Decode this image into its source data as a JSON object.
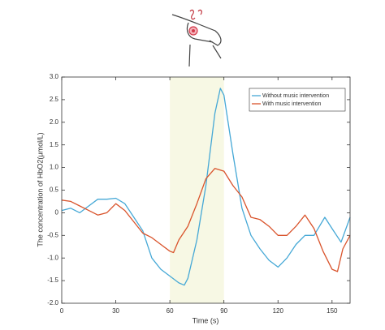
{
  "chart_data": {
    "type": "line",
    "xlabel": "Time (s)",
    "ylabel": "The concentration of  HbO2(μmol/L)",
    "xlim": [
      0,
      160
    ],
    "ylim": [
      -2,
      3
    ],
    "xticks": [
      0,
      30,
      60,
      90,
      120,
      150
    ],
    "yticks": [
      {
        "value": -2,
        "label": "-2.0"
      },
      {
        "value": -1.5,
        "label": "-1.5"
      },
      {
        "value": -1,
        "label": "-1.0"
      },
      {
        "value": -0.5,
        "label": "-0.5"
      },
      {
        "value": 0,
        "label": "0"
      },
      {
        "value": 0.5,
        "label": "0.5"
      },
      {
        "value": 1,
        "label": "1.0"
      },
      {
        "value": 1.5,
        "label": "1.5"
      },
      {
        "value": 2,
        "label": "2.0"
      },
      {
        "value": 2.5,
        "label": "2.5"
      },
      {
        "value": 3,
        "label": "3.0"
      }
    ],
    "highlight": [
      60,
      90
    ],
    "highlight_color": "#f7f8e4",
    "legend": "upper right",
    "series": [
      {
        "name": "Without music intervention",
        "color": "#45a8d6",
        "x": [
          0,
          5,
          10,
          15,
          20,
          25,
          30,
          35,
          40,
          45,
          50,
          55,
          60,
          65,
          68,
          70,
          75,
          80,
          85,
          88,
          90,
          95,
          100,
          105,
          110,
          115,
          120,
          125,
          130,
          135,
          140,
          143,
          146,
          150,
          155,
          160
        ],
        "values": [
          0.05,
          0.1,
          0.0,
          0.15,
          0.3,
          0.3,
          0.32,
          0.2,
          -0.1,
          -0.4,
          -1.0,
          -1.25,
          -1.4,
          -1.55,
          -1.6,
          -1.45,
          -0.6,
          0.6,
          2.2,
          2.75,
          2.6,
          1.3,
          0.1,
          -0.5,
          -0.8,
          -1.05,
          -1.2,
          -1.0,
          -0.7,
          -0.5,
          -0.5,
          -0.3,
          -0.1,
          -0.35,
          -0.65,
          -0.1
        ]
      },
      {
        "name": "With music intervention",
        "color": "#d9532b",
        "x": [
          0,
          5,
          10,
          15,
          20,
          25,
          30,
          35,
          40,
          45,
          50,
          55,
          60,
          62,
          65,
          70,
          75,
          80,
          85,
          90,
          95,
          100,
          105,
          110,
          115,
          120,
          125,
          130,
          135,
          140,
          145,
          150,
          153,
          156,
          160
        ],
        "values": [
          0.28,
          0.25,
          0.15,
          0.05,
          -0.05,
          0.0,
          0.2,
          0.05,
          -0.2,
          -0.45,
          -0.55,
          -0.7,
          -0.85,
          -0.88,
          -0.6,
          -0.3,
          0.2,
          0.75,
          0.98,
          0.92,
          0.6,
          0.35,
          -0.1,
          -0.15,
          -0.3,
          -0.5,
          -0.5,
          -0.3,
          -0.05,
          -0.35,
          -0.85,
          -1.25,
          -1.3,
          -0.8,
          -0.5
        ]
      }
    ]
  }
}
